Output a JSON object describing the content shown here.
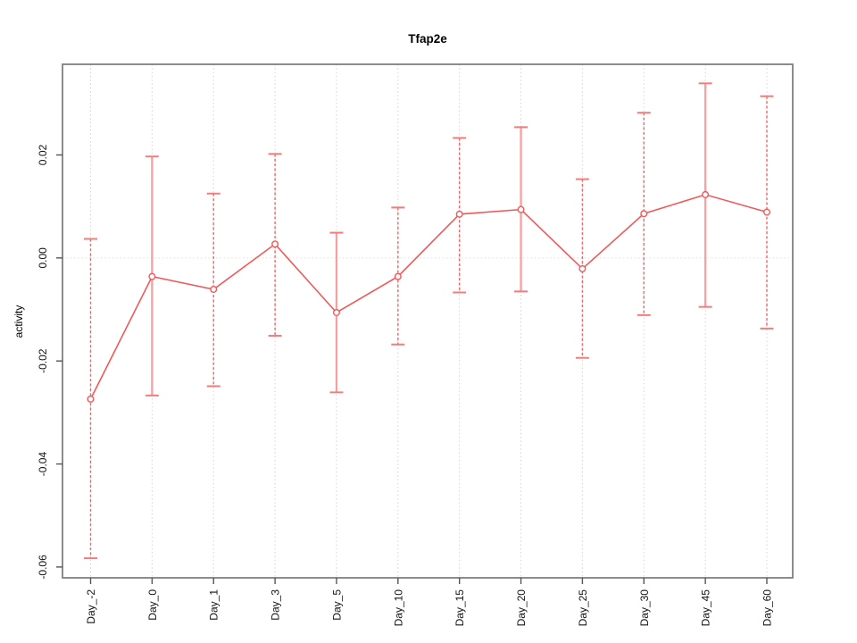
{
  "chart_data": {
    "type": "line",
    "title": "Tfap2e",
    "xlabel": "",
    "ylabel": "activity",
    "categories": [
      "Day_-2",
      "Day_0",
      "Day_1",
      "Day_3",
      "Day_5",
      "Day_10",
      "Day_15",
      "Day_20",
      "Day_25",
      "Day_30",
      "Day_45",
      "Day_60"
    ],
    "series": [
      {
        "name": "activity",
        "values": [
          -0.0274,
          -0.0036,
          -0.0061,
          0.0027,
          -0.0106,
          -0.0036,
          0.0085,
          0.0094,
          -0.0021,
          0.0086,
          0.0123,
          0.0089
        ],
        "upper": [
          0.0037,
          0.0197,
          0.0125,
          0.0202,
          0.0049,
          0.0098,
          0.0233,
          0.0254,
          0.0153,
          0.0282,
          0.0339,
          0.0314
        ],
        "lower": [
          -0.0583,
          -0.0267,
          -0.0249,
          -0.0151,
          -0.0261,
          -0.0168,
          -0.0067,
          -0.0065,
          -0.0194,
          -0.0111,
          -0.0095,
          -0.0137
        ],
        "error_bar_styles": [
          "dashed",
          "solid",
          "dashed",
          "dashed",
          "solid",
          "dashed",
          "dashed",
          "solid",
          "dashed",
          "dashed",
          "solid",
          "dashed"
        ]
      }
    ],
    "ylim": [
      -0.0621,
      0.0376
    ],
    "yticks": [
      0.02,
      0.0,
      -0.02,
      -0.04,
      -0.06
    ],
    "ytick_labels": [
      "0.02",
      "0.00",
      "-0.02",
      "-0.04",
      "-0.06"
    ],
    "grid": "vertical dotted gridline per category, dotted horizontal line at y=0, legend none",
    "marker": "open-circle",
    "colors": {
      "line": "#ee5a5a",
      "error_bar_solid": "#f7a0a0",
      "error_bar_dashed": "#ee6666",
      "error_bar_cap": "#f47c7c",
      "grid": "#d4d4d4",
      "zero_line": "#dedede",
      "axis_frame": "#7f7f7f",
      "tick": "#555555",
      "text": "#111111",
      "background": "#ffffff"
    }
  }
}
